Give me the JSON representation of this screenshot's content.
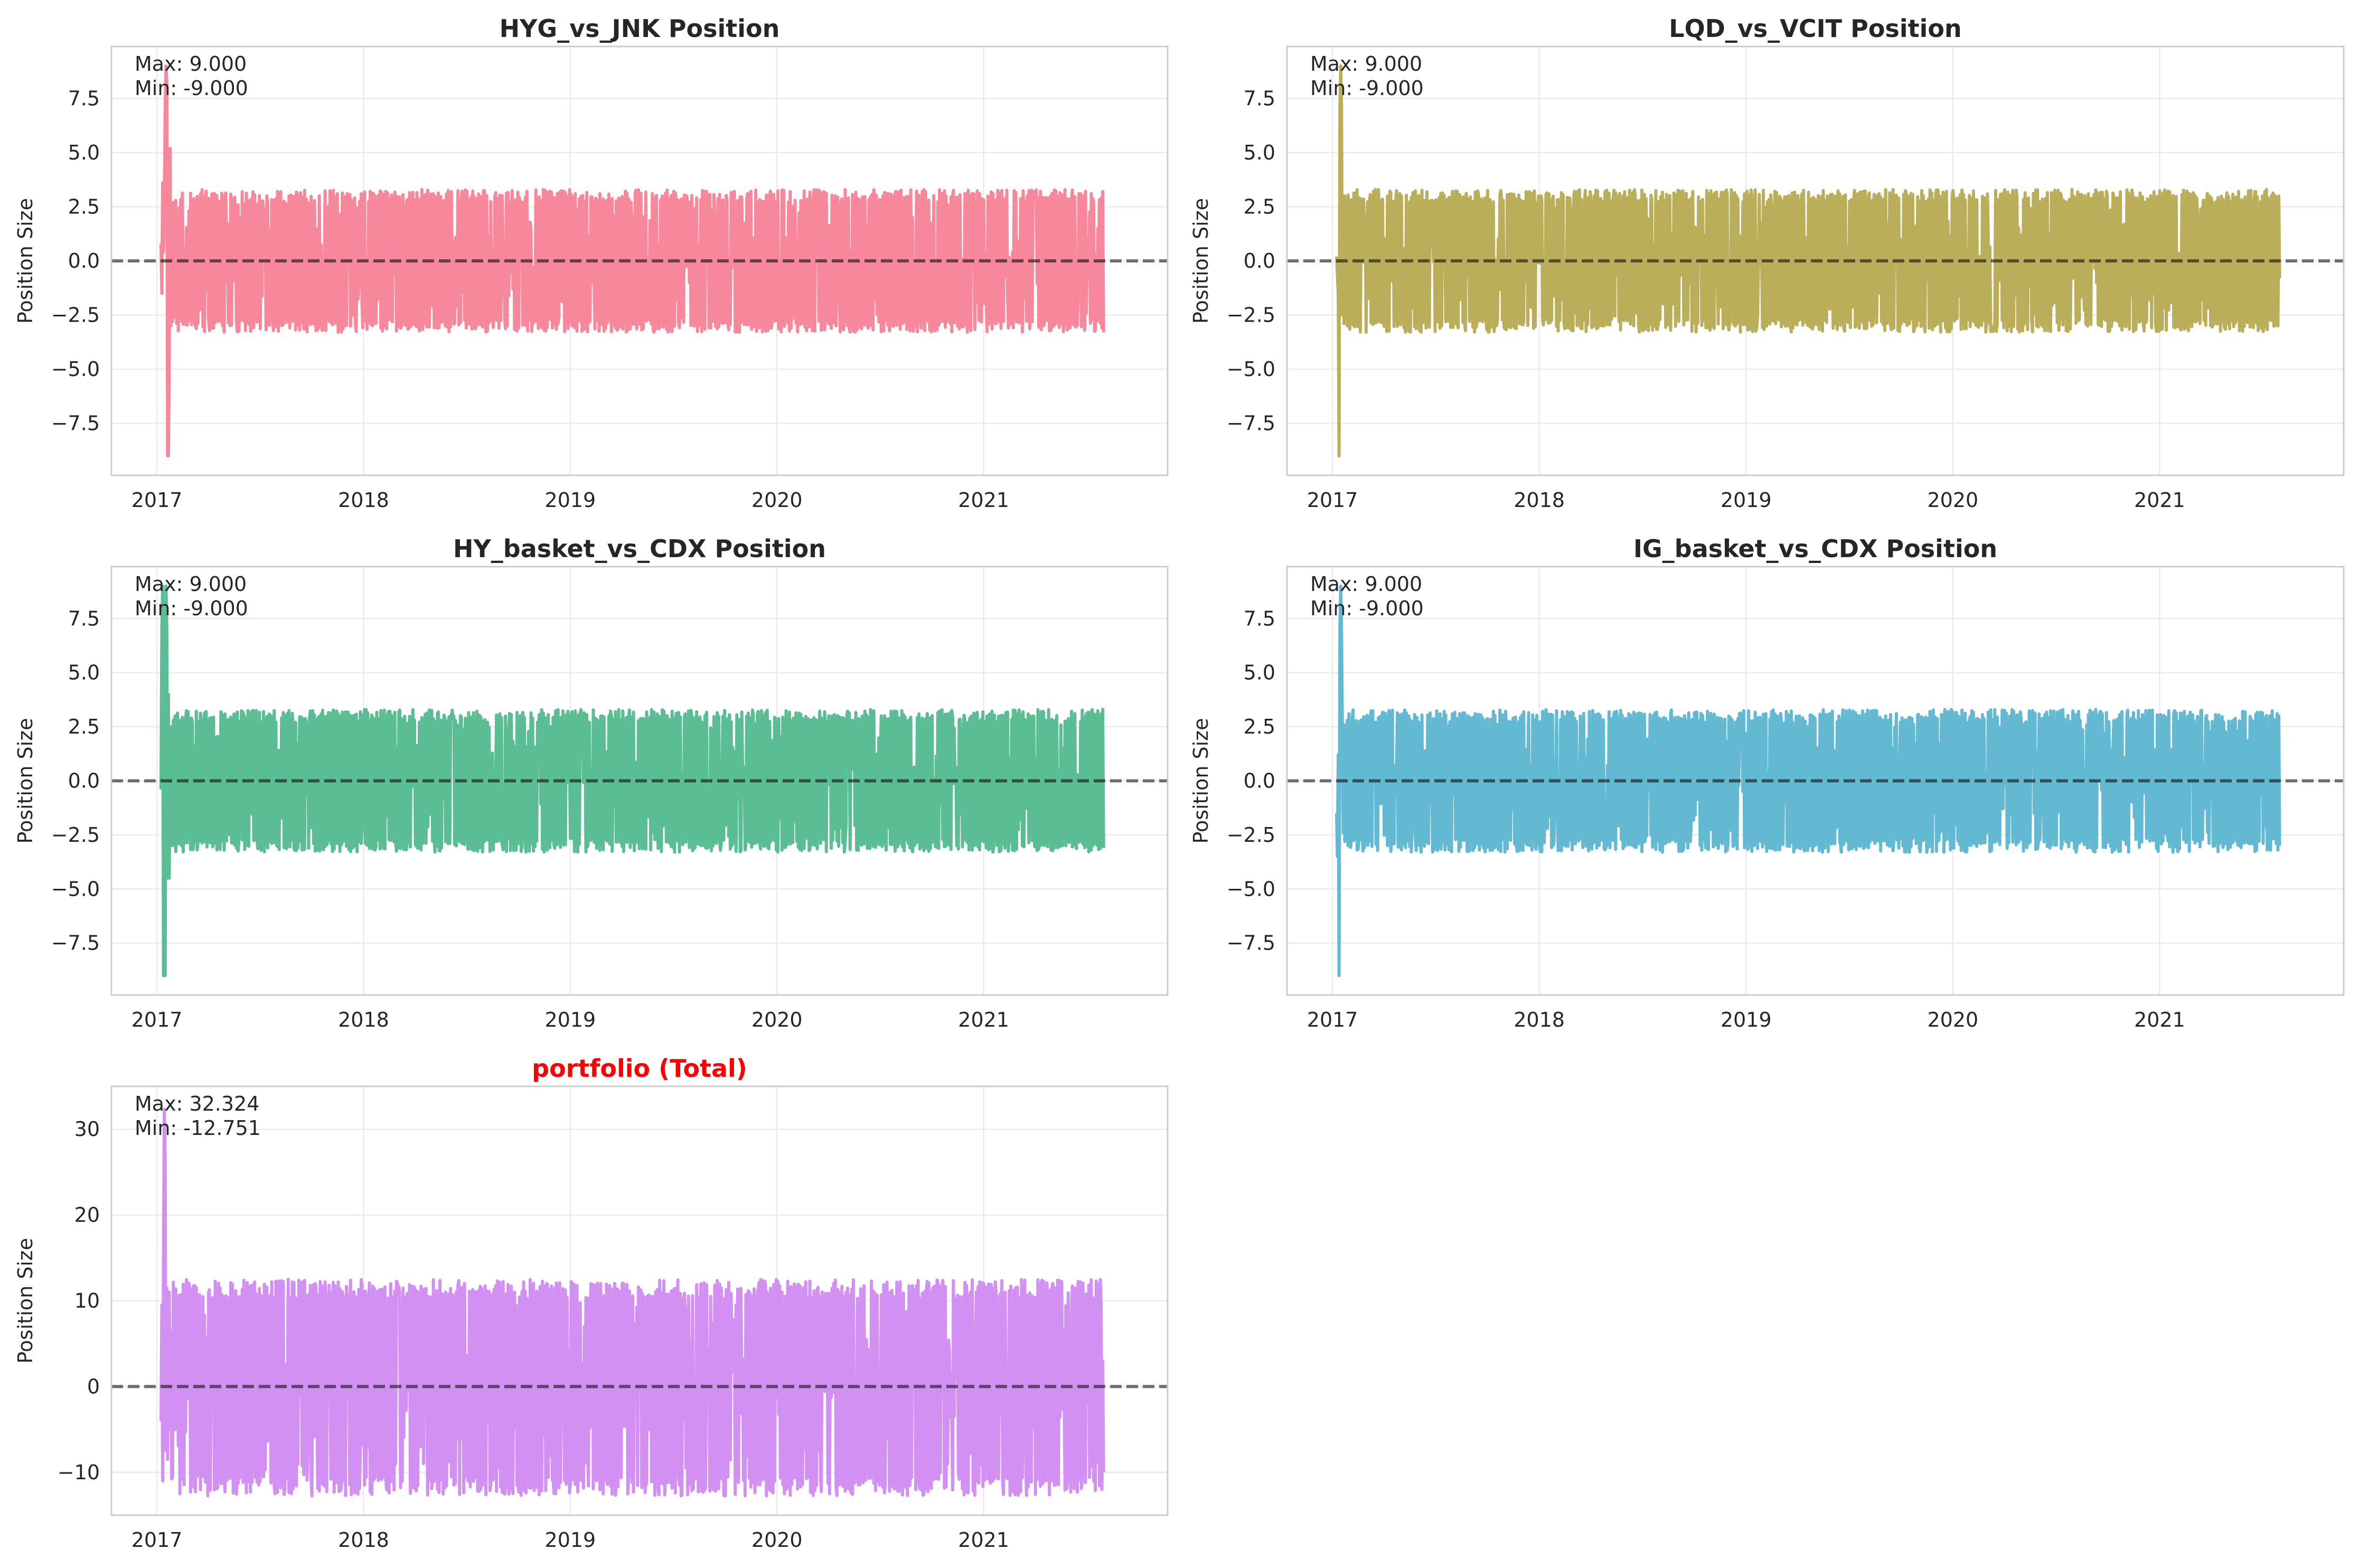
{
  "figure": {
    "background": "#ffffff"
  },
  "chart_data": [
    {
      "type": "line",
      "title": "HYG_vs_JNK Position",
      "title_color": "#262626",
      "xlabel": "",
      "ylabel": "Position Size",
      "color": "#f7889b",
      "xlim": [
        2016.78,
        2021.89
      ],
      "ylim": [
        -9.9,
        9.9
      ],
      "yticks": [
        -7.5,
        -5.0,
        -2.5,
        0.0,
        2.5,
        5.0,
        7.5
      ],
      "ytick_labels": [
        "−7.5",
        "−5.0",
        "−2.5",
        "0.0",
        "2.5",
        "5.0",
        "7.5"
      ],
      "xticks": [
        2017,
        2018,
        2019,
        2020,
        2021
      ],
      "xtick_labels": [
        "2017",
        "2018",
        "2019",
        "2020",
        "2021"
      ],
      "x_range": [
        2017.02,
        2021.58
      ],
      "grid": true,
      "zero_line": true,
      "annotation": [
        "Max: 9.000",
        "Min: -9.000"
      ],
      "summary": {
        "max": 9.0,
        "min": -9.0
      },
      "series": [
        {
          "values": {
            "start": [
              0.8,
              -1.5,
              3.6,
              0.4,
              2.5,
              7.0,
              9.0,
              8.2,
              -9.0,
              -9.0,
              -4.5,
              5.2,
              -3.0,
              2.6,
              -2.8,
              2.7,
              1.0,
              -2.6,
              2.8
            ],
            "typical": [
              -3.3,
              3.3
            ],
            "end": [
              2.9,
              -3.1,
              3.2,
              -3.3
            ]
          }
        }
      ]
    },
    {
      "type": "line",
      "title": "LQD_vs_VCIT Position",
      "title_color": "#262626",
      "xlabel": "",
      "ylabel": "Position Size",
      "color": "#bbae5b",
      "xlim": [
        2016.78,
        2021.89
      ],
      "ylim": [
        -9.9,
        9.9
      ],
      "yticks": [
        -7.5,
        -5.0,
        -2.5,
        0.0,
        2.5,
        5.0,
        7.5
      ],
      "ytick_labels": [
        "−7.5",
        "−5.0",
        "−2.5",
        "0.0",
        "2.5",
        "5.0",
        "7.5"
      ],
      "xticks": [
        2017,
        2018,
        2019,
        2020,
        2021
      ],
      "xtick_labels": [
        "2017",
        "2018",
        "2019",
        "2020",
        "2021"
      ],
      "x_range": [
        2017.02,
        2021.58
      ],
      "grid": true,
      "zero_line": true,
      "annotation": [
        "Max: 9.000",
        "Min: -9.000"
      ],
      "summary": {
        "max": 9.0,
        "min": -9.0
      },
      "series": [
        {
          "values": {
            "start": [
              0.2,
              -0.6,
              -1.5,
              -9.0,
              7.0,
              9.0,
              7.2,
              -2.5,
              2.4,
              -2.9,
              3.0,
              -2.6,
              2.8,
              -3.0
            ],
            "typical": [
              -3.3,
              3.3
            ],
            "end": [
              2.9,
              -3.0,
              3.0,
              -0.8
            ]
          }
        }
      ]
    },
    {
      "type": "line",
      "title": "HY_basket_vs_CDX Position",
      "title_color": "#262626",
      "xlabel": "",
      "ylabel": "Position Size",
      "color": "#5bbd93",
      "xlim": [
        2016.78,
        2021.89
      ],
      "ylim": [
        -9.9,
        9.9
      ],
      "yticks": [
        -7.5,
        -5.0,
        -2.5,
        0.0,
        2.5,
        5.0,
        7.5
      ],
      "ytick_labels": [
        "−7.5",
        "−5.0",
        "−2.5",
        "0.0",
        "2.5",
        "5.0",
        "7.5"
      ],
      "xticks": [
        2017,
        2018,
        2019,
        2020,
        2021
      ],
      "xtick_labels": [
        "2017",
        "2018",
        "2019",
        "2020",
        "2021"
      ],
      "x_range": [
        2017.02,
        2021.58
      ],
      "grid": true,
      "zero_line": true,
      "annotation": [
        "Max: 9.000",
        "Min: -9.000"
      ],
      "summary": {
        "max": 9.0,
        "min": -9.0
      },
      "series": [
        {
          "values": {
            "start": [
              -0.4,
              7.0,
              9.0,
              -9.0,
              -9.0,
              -9.0,
              9.0,
              7.0,
              -4.5,
              4.0,
              -4.5,
              2.5,
              -1.0,
              2.5,
              -3.0,
              2.8,
              -2.5,
              3.0
            ],
            "typical": [
              -3.3,
              3.3
            ],
            "end": [
              3.1,
              -3.0,
              3.3,
              -3.1
            ]
          }
        }
      ]
    },
    {
      "type": "line",
      "title": "IG_basket_vs_CDX Position",
      "title_color": "#262626",
      "xlabel": "",
      "ylabel": "Position Size",
      "color": "#63b9d1",
      "xlim": [
        2016.78,
        2021.89
      ],
      "ylim": [
        -9.9,
        9.9
      ],
      "yticks": [
        -7.5,
        -5.0,
        -2.5,
        0.0,
        2.5,
        5.0,
        7.5
      ],
      "ytick_labels": [
        "−7.5",
        "−5.0",
        "−2.5",
        "0.0",
        "2.5",
        "5.0",
        "7.5"
      ],
      "xticks": [
        2017,
        2018,
        2019,
        2020,
        2021
      ],
      "xtick_labels": [
        "2017",
        "2018",
        "2019",
        "2020",
        "2021"
      ],
      "x_range": [
        2017.02,
        2021.58
      ],
      "grid": true,
      "zero_line": true,
      "annotation": [
        "Max: 9.000",
        "Min: -9.000"
      ],
      "summary": {
        "max": 9.0,
        "min": -9.0
      },
      "series": [
        {
          "values": {
            "start": [
              -1.5,
              -3.5,
              1.2,
              -9.0,
              7.0,
              9.0,
              7.0,
              2.4,
              -2.4,
              2.6,
              -2.8,
              2.5,
              -0.5,
              2.8,
              -3.0
            ],
            "typical": [
              -3.3,
              3.3
            ],
            "end": [
              3.1,
              -3.2,
              3.0,
              -3.0
            ]
          }
        }
      ]
    },
    {
      "type": "line",
      "title": "portfolio (Total)",
      "title_color": "#ff0000",
      "xlabel": "",
      "ylabel": "Position Size",
      "color": "#d291f2",
      "xlim": [
        2016.78,
        2021.89
      ],
      "ylim": [
        -15.0,
        35.0
      ],
      "yticks": [
        -10,
        0,
        10,
        20,
        30
      ],
      "ytick_labels": [
        "−10",
        "0",
        "10",
        "20",
        "30"
      ],
      "xticks": [
        2017,
        2018,
        2019,
        2020,
        2021
      ],
      "xtick_labels": [
        "2017",
        "2018",
        "2019",
        "2020",
        "2021"
      ],
      "x_range": [
        2017.02,
        2021.58
      ],
      "grid": true,
      "zero_line": true,
      "annotation": [
        "Max: 32.324",
        "Min: -12.751"
      ],
      "summary": {
        "max": 32.324,
        "min": -12.751
      },
      "series": [
        {
          "values": {
            "start": [
              -4.0,
              9.5,
              -11.0,
              16.0,
              32.324,
              27.0,
              -7.5,
              11.5,
              -8.5,
              5.0,
              11.0,
              -5.0,
              6.5
            ],
            "typical": [
              -12.751,
              12.5
            ],
            "end": [
              9.8,
              -12.0,
              3.0,
              -10.0
            ]
          }
        }
      ]
    }
  ]
}
